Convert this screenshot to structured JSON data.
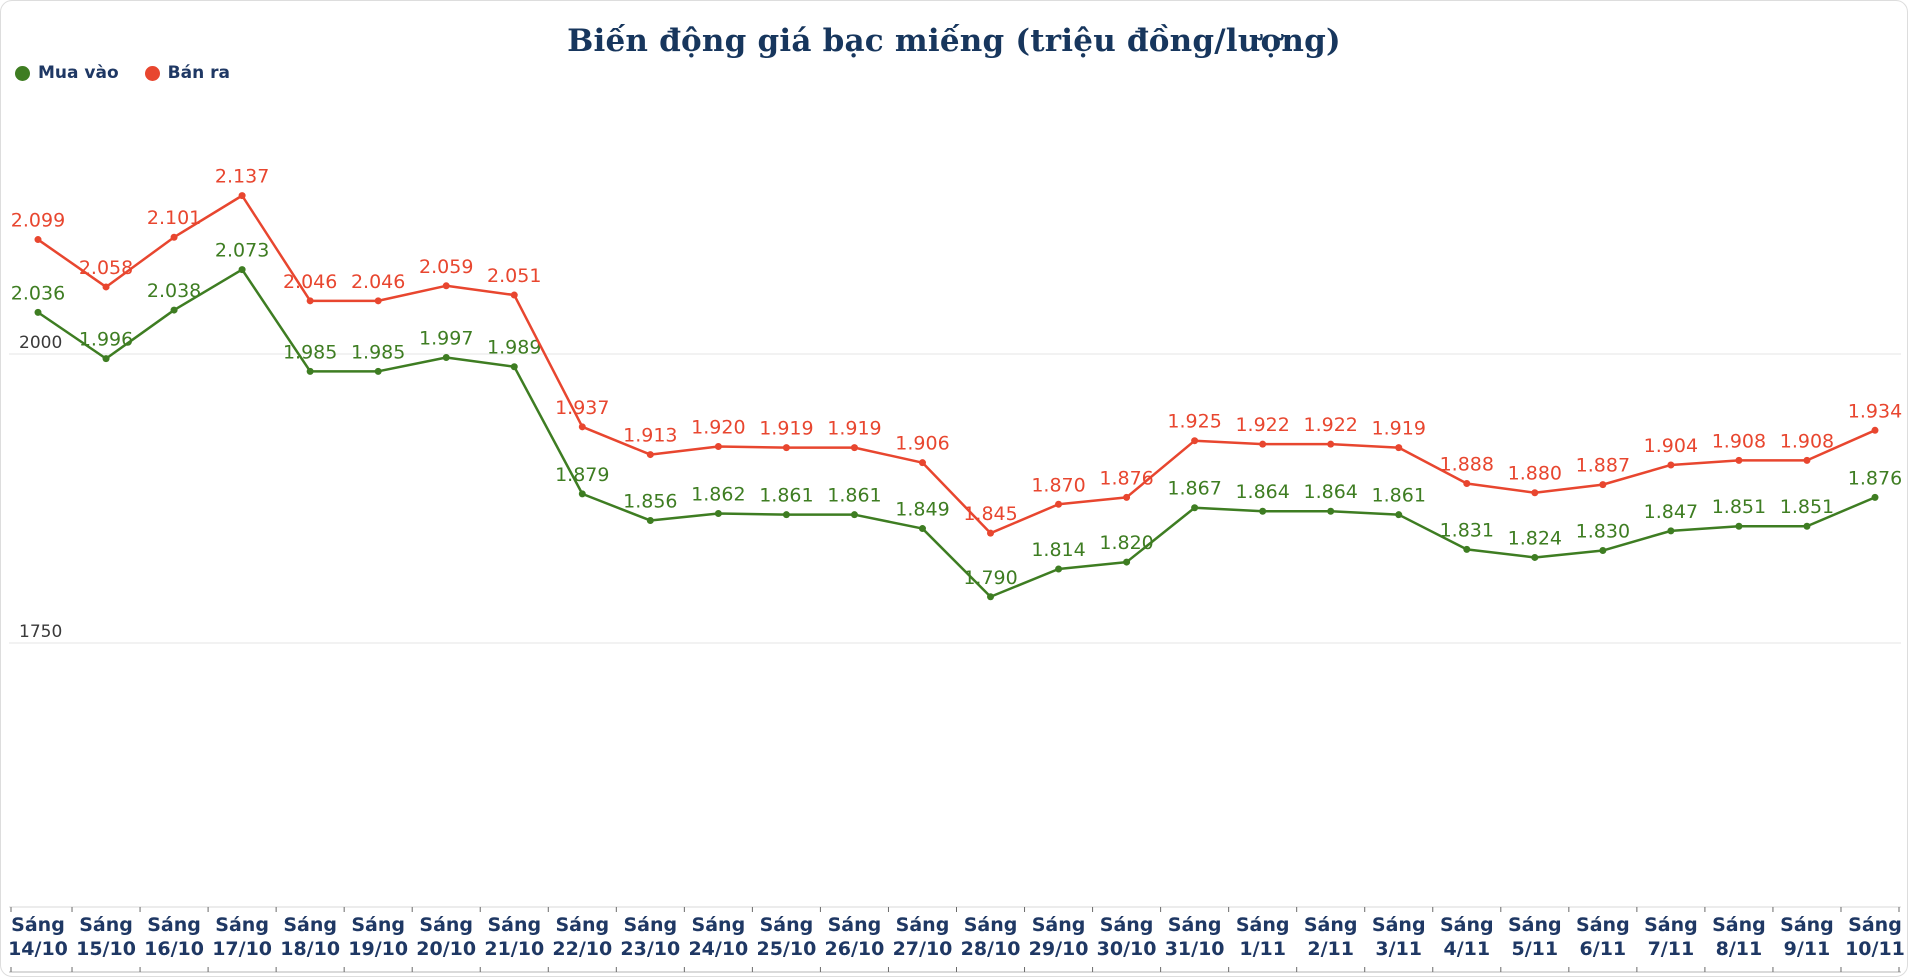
{
  "title": "Biến động giá bạc miếng (triệu đồng/lượng)",
  "colors": {
    "buy_series": "#3e7d22",
    "sell_series": "#e8462f",
    "title_text": "#17365d",
    "axis_label_text": "#1f3864",
    "gridline": "#e6e6e6"
  },
  "chart_data": {
    "type": "line",
    "title": "Biến động giá bạc miếng (triệu đồng/lượng)",
    "x_label_prefix": "Sáng",
    "categories": [
      "14/10",
      "15/10",
      "16/10",
      "17/10",
      "18/10",
      "19/10",
      "20/10",
      "21/10",
      "22/10",
      "23/10",
      "24/10",
      "25/10",
      "26/10",
      "27/10",
      "28/10",
      "29/10",
      "30/10",
      "31/10",
      "1/11",
      "2/11",
      "3/11",
      "4/11",
      "5/11",
      "6/11",
      "7/11",
      "8/11",
      "9/11",
      "10/11"
    ],
    "series": [
      {
        "name": "Mua vào",
        "color": "#3e7d22",
        "values": [
          2.036,
          1.996,
          2.038,
          2.073,
          1.985,
          1.985,
          1.997,
          1.989,
          1.879,
          1.856,
          1.862,
          1.861,
          1.861,
          1.849,
          1.79,
          1.814,
          1.82,
          1.867,
          1.864,
          1.864,
          1.861,
          1.831,
          1.824,
          1.83,
          1.847,
          1.851,
          1.851,
          1.876
        ]
      },
      {
        "name": "Bán ra",
        "color": "#e8462f",
        "values": [
          2.099,
          2.058,
          2.101,
          2.137,
          2.046,
          2.046,
          2.059,
          2.051,
          1.937,
          1.913,
          1.92,
          1.919,
          1.919,
          1.906,
          1.845,
          1.87,
          1.876,
          1.925,
          1.922,
          1.922,
          1.919,
          1.888,
          1.88,
          1.887,
          1.904,
          1.908,
          1.908,
          1.934
        ]
      }
    ],
    "yticks": [
      {
        "label": "2000",
        "value": 2.0
      },
      {
        "label": "1750",
        "value": 1.75
      }
    ],
    "ylim": [
      1.5,
      2.25
    ],
    "grid": true,
    "legend_position": "top-left",
    "value_label_format": "3-decimals",
    "unit": "triệu đồng/lượng"
  }
}
